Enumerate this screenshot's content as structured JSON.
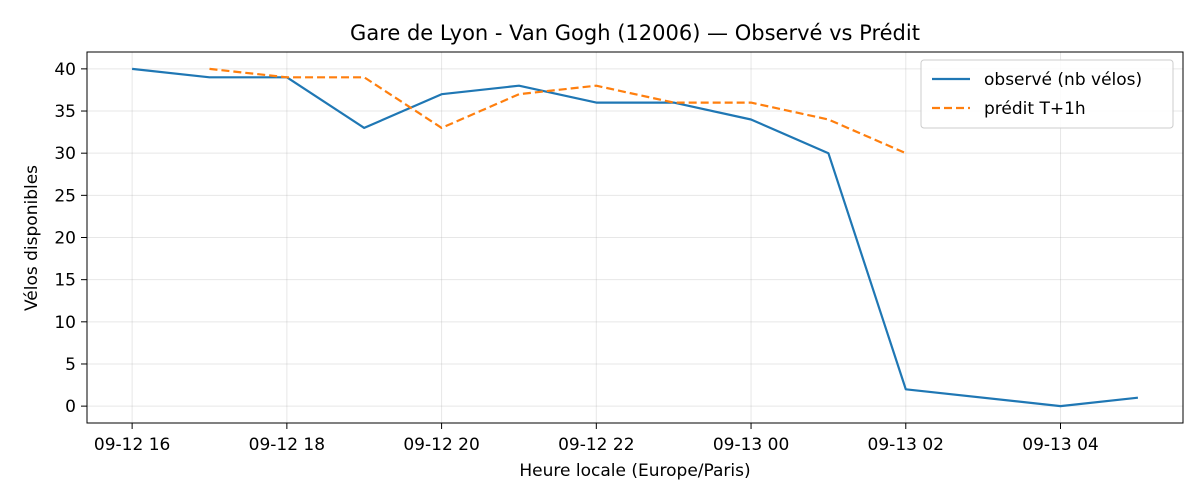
{
  "chart_data": {
    "type": "line",
    "title": "Gare de Lyon - Van Gogh (12006) — Observé vs Prédit",
    "xlabel": "Heure locale (Europe/Paris)",
    "ylabel": "Vélos disponibles",
    "x_ticks": [
      "09-12 16",
      "09-12 18",
      "09-12 20",
      "09-12 22",
      "09-13 00",
      "09-13 02",
      "09-13 04"
    ],
    "y_ticks": [
      0,
      5,
      10,
      15,
      20,
      25,
      30,
      35,
      40
    ],
    "ylim": [
      -2,
      42
    ],
    "xlim": [
      "2024-09-12 15:25",
      "2024-09-13 05:35"
    ],
    "grid": true,
    "legend_position": "top-right",
    "series": [
      {
        "name": "observé (nb vélos)",
        "color": "#1f77b4",
        "style": "solid",
        "points": [
          {
            "x": "2024-09-12 16:00",
            "y": 40
          },
          {
            "x": "2024-09-12 17:00",
            "y": 39
          },
          {
            "x": "2024-09-12 18:00",
            "y": 39
          },
          {
            "x": "2024-09-12 19:00",
            "y": 33
          },
          {
            "x": "2024-09-12 20:00",
            "y": 37
          },
          {
            "x": "2024-09-12 21:00",
            "y": 38
          },
          {
            "x": "2024-09-12 22:00",
            "y": 36
          },
          {
            "x": "2024-09-12 23:00",
            "y": 36
          },
          {
            "x": "2024-09-13 00:00",
            "y": 34
          },
          {
            "x": "2024-09-13 01:00",
            "y": 30
          },
          {
            "x": "2024-09-13 02:00",
            "y": 2
          },
          {
            "x": "2024-09-13 04:00",
            "y": 0
          },
          {
            "x": "2024-09-13 05:00",
            "y": 1
          }
        ]
      },
      {
        "name": "prédit T+1h",
        "color": "#ff7f0e",
        "style": "dashed",
        "points": [
          {
            "x": "2024-09-12 17:00",
            "y": 40
          },
          {
            "x": "2024-09-12 18:00",
            "y": 39
          },
          {
            "x": "2024-09-12 19:00",
            "y": 39
          },
          {
            "x": "2024-09-12 20:00",
            "y": 33
          },
          {
            "x": "2024-09-12 21:00",
            "y": 37
          },
          {
            "x": "2024-09-12 22:00",
            "y": 38
          },
          {
            "x": "2024-09-12 23:00",
            "y": 36
          },
          {
            "x": "2024-09-13 00:00",
            "y": 36
          },
          {
            "x": "2024-09-13 01:00",
            "y": 34
          },
          {
            "x": "2024-09-13 02:00",
            "y": 30
          }
        ]
      }
    ]
  }
}
